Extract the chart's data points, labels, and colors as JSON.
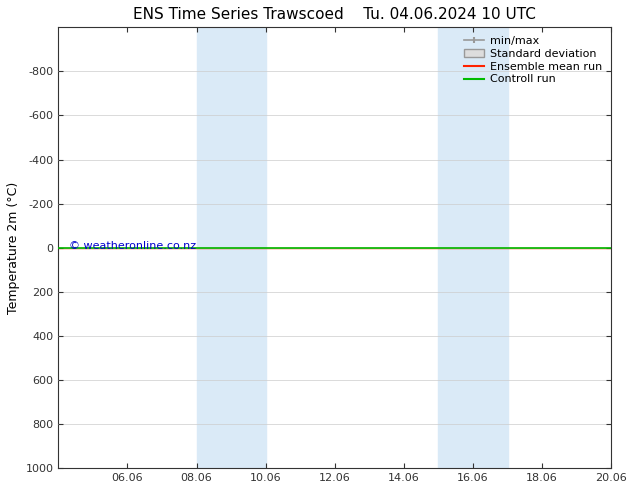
{
  "title_left": "ENS Time Series Trawscoed",
  "title_right": "Tu. 04.06.2024 10 UTC",
  "ylabel": "Temperature 2m (°C)",
  "ylim": [
    -1000,
    1000
  ],
  "yticks": [
    -800,
    -600,
    -400,
    -200,
    0,
    200,
    400,
    600,
    800,
    1000
  ],
  "xlim": [
    0,
    16
  ],
  "xtick_labels": [
    "06.06",
    "08.06",
    "10.06",
    "12.06",
    "14.06",
    "16.06",
    "18.06",
    "20.06"
  ],
  "xtick_positions": [
    2,
    4,
    6,
    8,
    10,
    12,
    14,
    16
  ],
  "background_color": "#ffffff",
  "plot_bg_color": "#ffffff",
  "shaded_bands": [
    {
      "x_start": 4.0,
      "x_end": 6.0
    },
    {
      "x_start": 11.0,
      "x_end": 13.0
    }
  ],
  "shaded_color": "#daeaf7",
  "control_run_y": 0.0,
  "control_run_color": "#00bb00",
  "ensemble_mean_color": "#ff2200",
  "watermark": "© weatheronline.co.nz",
  "watermark_color": "#0000cc",
  "legend_minmax_color": "#999999",
  "legend_stddev_facecolor": "#dddddd",
  "legend_stddev_edgecolor": "#999999",
  "grid_color": "#cccccc",
  "tick_color": "#333333",
  "font_size_title": 11,
  "font_size_axis": 8,
  "font_size_legend": 8,
  "font_size_watermark": 8
}
